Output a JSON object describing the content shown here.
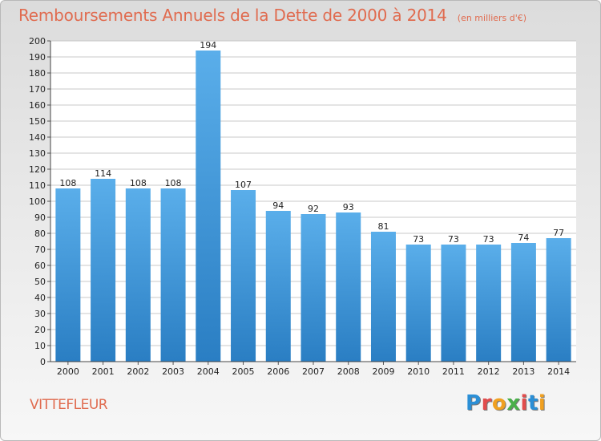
{
  "header": {
    "title": "Remboursements Annuels de la Dette de 2000 à 2014",
    "subtitle": "(en milliers d'€)"
  },
  "footer": {
    "commune": "VITTEFLEUR",
    "logo": [
      "P",
      "r",
      "o",
      "x",
      "i",
      "t",
      "i"
    ],
    "logo_colors": [
      "#2b8fd6",
      "#e24c4c",
      "#f0a020",
      "#4ab04a",
      "#e24c4c",
      "#2b8fd6",
      "#f0a020"
    ]
  },
  "chart_data": {
    "type": "bar",
    "title": "Remboursements Annuels de la Dette de 2000 à 2014",
    "subtitle": "(en milliers d'€)",
    "categories": [
      "2000",
      "2001",
      "2002",
      "2003",
      "2004",
      "2005",
      "2006",
      "2007",
      "2008",
      "2009",
      "2010",
      "2011",
      "2012",
      "2013",
      "2014"
    ],
    "values": [
      108,
      114,
      108,
      108,
      194,
      107,
      94,
      92,
      93,
      81,
      73,
      73,
      73,
      74,
      77
    ],
    "data_labels": [
      "108",
      "114",
      "108",
      "108",
      "194",
      "107",
      "94",
      "92",
      "93",
      "81",
      "73",
      "73",
      "73",
      "74",
      "77"
    ],
    "ylim": [
      0,
      200
    ],
    "yticks": [
      0,
      10,
      20,
      30,
      40,
      50,
      60,
      70,
      80,
      90,
      100,
      110,
      120,
      130,
      140,
      150,
      160,
      170,
      180,
      190,
      200
    ],
    "grid": true,
    "bar_color_top": "#5aaeea",
    "bar_color_bottom": "#2a7ec3",
    "grid_color": "#c8c8c8",
    "plot_bg": "#ffffff"
  }
}
